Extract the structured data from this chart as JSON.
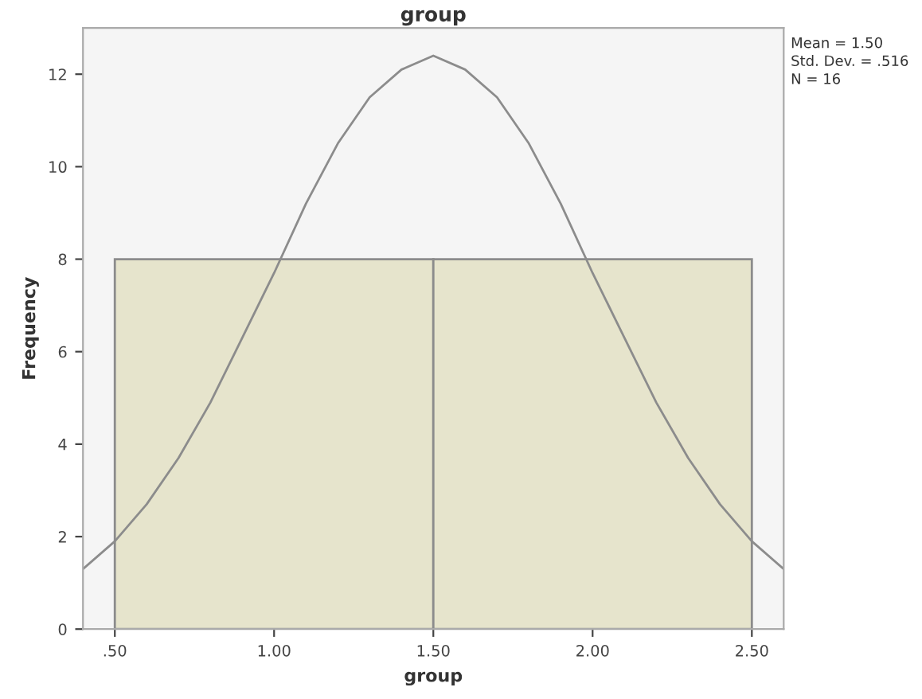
{
  "chart_data": {
    "type": "histogram",
    "title": "group",
    "xlabel": "group",
    "ylabel": "Frequency",
    "bins": [
      0.5,
      1.5,
      2.5
    ],
    "values": [
      8,
      8
    ],
    "color": "#e6e4cc",
    "series": [
      {
        "type": "line",
        "color": "#8c8c8c",
        "x": [
          0.4,
          0.5,
          0.6,
          0.7,
          0.8,
          0.9,
          1.0,
          1.1,
          1.2,
          1.3,
          1.4,
          1.5,
          1.6,
          1.7,
          1.8,
          1.9,
          2.0,
          2.1,
          2.2,
          2.3,
          2.4,
          2.5,
          2.6
        ],
        "values": [
          1.3,
          1.9,
          2.7,
          3.7,
          4.9,
          6.3,
          7.7,
          9.2,
          10.5,
          11.5,
          12.1,
          12.4,
          12.1,
          11.5,
          10.5,
          9.2,
          7.7,
          6.3,
          4.9,
          3.7,
          2.7,
          1.9,
          1.3
        ]
      }
    ],
    "xlim": [
      0.4,
      2.6
    ],
    "ylim": [
      0,
      13
    ],
    "xticks": [
      {
        "value": 0.5,
        "label": ".50"
      },
      {
        "value": 1.0,
        "label": "1.00"
      },
      {
        "value": 1.5,
        "label": "1.50"
      },
      {
        "value": 2.0,
        "label": "2.00"
      },
      {
        "value": 2.5,
        "label": "2.50"
      }
    ],
    "yticks": [
      0,
      2,
      4,
      6,
      8,
      10,
      12
    ],
    "annotations": [
      "Mean = 1.50",
      "Std. Dev. = .516",
      "N = 16"
    ]
  }
}
